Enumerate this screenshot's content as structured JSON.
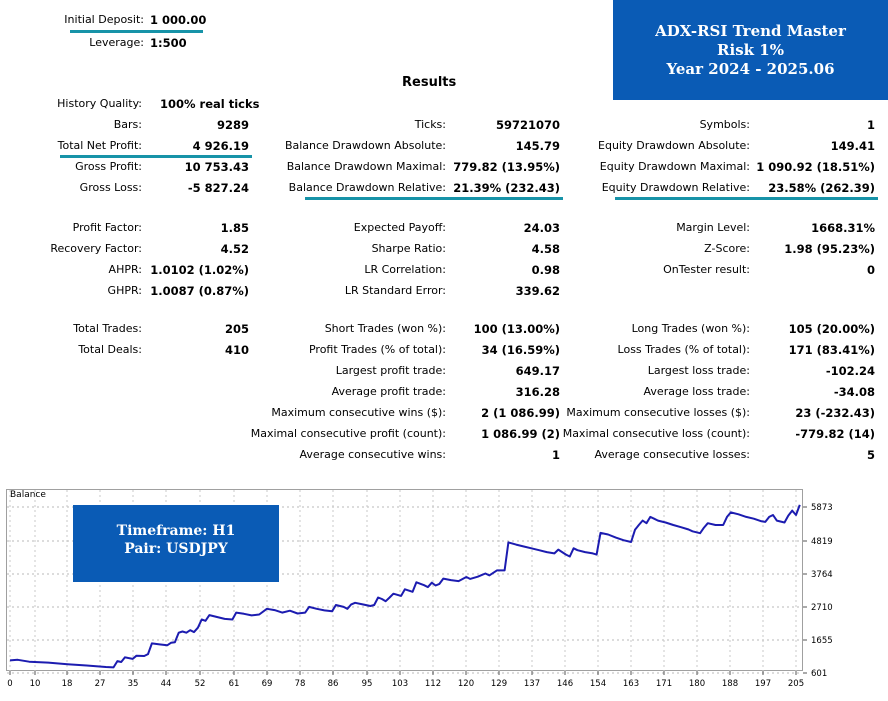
{
  "header": {
    "initial_deposit_label": "Initial Deposit:",
    "initial_deposit_value": "1 000.00",
    "leverage_label": "Leverage:",
    "leverage_value": "1:500"
  },
  "banner_top": {
    "line1": "ADX-RSI Trend Master",
    "line2": "Risk 1%",
    "line3": "Year 2024 - 2025.06",
    "color": "#0a5bb5"
  },
  "results_title": "Results",
  "col1": [
    {
      "label": "History Quality:",
      "value": "100% real ticks"
    },
    {
      "label": "Bars:",
      "value": "9289"
    },
    {
      "label": "Total Net Profit:",
      "value": "4 926.19"
    },
    {
      "label": "Gross Profit:",
      "value": "10 753.43"
    },
    {
      "label": "Gross Loss:",
      "value": "-5 827.24"
    },
    {
      "label": "Profit Factor:",
      "value": "1.85"
    },
    {
      "label": "Recovery Factor:",
      "value": "4.52"
    },
    {
      "label": "AHPR:",
      "value": "1.0102 (1.02%)"
    },
    {
      "label": "GHPR:",
      "value": "1.0087 (0.87%)"
    },
    {
      "label": "Total Trades:",
      "value": "205"
    },
    {
      "label": "Total Deals:",
      "value": "410"
    }
  ],
  "col2": [
    {
      "label": "Ticks:",
      "value": "59721070"
    },
    {
      "label": "Balance Drawdown Absolute:",
      "value": "145.79"
    },
    {
      "label": "Balance Drawdown Maximal:",
      "value": "779.82 (13.95%)"
    },
    {
      "label": "Balance Drawdown Relative:",
      "value": "21.39% (232.43)"
    },
    {
      "label": "Expected Payoff:",
      "value": "24.03"
    },
    {
      "label": "Sharpe Ratio:",
      "value": "4.58"
    },
    {
      "label": "LR Correlation:",
      "value": "0.98"
    },
    {
      "label": "LR Standard Error:",
      "value": "339.62"
    },
    {
      "label": "Short Trades (won %):",
      "value": "100 (13.00%)"
    },
    {
      "label": "Profit Trades (% of total):",
      "value": "34 (16.59%)"
    },
    {
      "label": "Largest profit trade:",
      "value": "649.17"
    },
    {
      "label": "Average profit trade:",
      "value": "316.28"
    },
    {
      "label": "Maximum consecutive wins ($):",
      "value": "2 (1 086.99)"
    },
    {
      "label": "Maximal consecutive profit (count):",
      "value": "1 086.99 (2)"
    },
    {
      "label": "Average consecutive wins:",
      "value": "1"
    }
  ],
  "col3": [
    {
      "label": "Symbols:",
      "value": "1"
    },
    {
      "label": "Equity Drawdown Absolute:",
      "value": "149.41"
    },
    {
      "label": "Equity Drawdown Maximal:",
      "value": "1 090.92 (18.51%)"
    },
    {
      "label": "Equity Drawdown Relative:",
      "value": "23.58% (262.39)"
    },
    {
      "label": "Margin Level:",
      "value": "1668.31%"
    },
    {
      "label": "Z-Score:",
      "value": "1.98 (95.23%)"
    },
    {
      "label": "OnTester result:",
      "value": "0"
    },
    {
      "label": "Long Trades (won %):",
      "value": "105 (20.00%)"
    },
    {
      "label": "Loss Trades (% of total):",
      "value": "171 (83.41%)"
    },
    {
      "label": "Largest loss trade:",
      "value": "-102.24"
    },
    {
      "label": "Average loss trade:",
      "value": "-34.08"
    },
    {
      "label": "Maximum consecutive losses ($):",
      "value": "23 (-232.43)"
    },
    {
      "label": "Maximal consecutive loss (count):",
      "value": "-779.82 (14)"
    },
    {
      "label": "Average consecutive losses:",
      "value": "5"
    }
  ],
  "banner_chart": {
    "line1": "Timeframe: H1",
    "line2": "Pair: USDJPY"
  },
  "chart_data": {
    "type": "line",
    "title": "Balance",
    "x_ticks": [
      "0",
      "10",
      "18",
      "27",
      "35",
      "44",
      "52",
      "61",
      "69",
      "78",
      "86",
      "95",
      "103",
      "112",
      "120",
      "129",
      "137",
      "146",
      "154",
      "163",
      "171",
      "180",
      "188",
      "197",
      "205"
    ],
    "y_ticks": [
      "5873",
      "4819",
      "3764",
      "2710",
      "1655",
      "601"
    ],
    "ylim": [
      601,
      5873
    ],
    "xlim": [
      0,
      205
    ],
    "line_color": "#1c1cb0",
    "series": [
      {
        "name": "Balance",
        "points": [
          [
            0,
            1000
          ],
          [
            2,
            1020
          ],
          [
            5,
            960
          ],
          [
            10,
            930
          ],
          [
            15,
            880
          ],
          [
            20,
            840
          ],
          [
            25,
            790
          ],
          [
            27,
            780
          ],
          [
            28,
            980
          ],
          [
            29,
            950
          ],
          [
            30,
            1100
          ],
          [
            32,
            1050
          ],
          [
            33,
            1150
          ],
          [
            35,
            1140
          ],
          [
            36,
            1200
          ],
          [
            37,
            1540
          ],
          [
            39,
            1510
          ],
          [
            41,
            1480
          ],
          [
            42,
            1560
          ],
          [
            43,
            1580
          ],
          [
            44,
            1880
          ],
          [
            45,
            1920
          ],
          [
            46,
            1880
          ],
          [
            47,
            1960
          ],
          [
            48,
            1900
          ],
          [
            49,
            2040
          ],
          [
            50,
            2300
          ],
          [
            51,
            2260
          ],
          [
            52,
            2440
          ],
          [
            54,
            2380
          ],
          [
            56,
            2320
          ],
          [
            58,
            2300
          ],
          [
            59,
            2520
          ],
          [
            61,
            2480
          ],
          [
            63,
            2430
          ],
          [
            65,
            2460
          ],
          [
            67,
            2640
          ],
          [
            69,
            2600
          ],
          [
            71,
            2520
          ],
          [
            73,
            2580
          ],
          [
            75,
            2490
          ],
          [
            77,
            2520
          ],
          [
            78,
            2700
          ],
          [
            80,
            2640
          ],
          [
            82,
            2590
          ],
          [
            84,
            2560
          ],
          [
            85,
            2760
          ],
          [
            87,
            2700
          ],
          [
            88,
            2640
          ],
          [
            89,
            2780
          ],
          [
            90,
            2830
          ],
          [
            92,
            2780
          ],
          [
            94,
            2730
          ],
          [
            95,
            2760
          ],
          [
            96,
            3000
          ],
          [
            97,
            2950
          ],
          [
            98,
            2880
          ],
          [
            99,
            3000
          ],
          [
            100,
            3120
          ],
          [
            102,
            3050
          ],
          [
            103,
            3260
          ],
          [
            105,
            3180
          ],
          [
            106,
            3480
          ],
          [
            108,
            3390
          ],
          [
            109,
            3330
          ],
          [
            110,
            3470
          ],
          [
            111,
            3380
          ],
          [
            112,
            3430
          ],
          [
            113,
            3600
          ],
          [
            115,
            3550
          ],
          [
            117,
            3520
          ],
          [
            119,
            3650
          ],
          [
            120,
            3590
          ],
          [
            122,
            3660
          ],
          [
            123,
            3710
          ],
          [
            124,
            3760
          ],
          [
            125,
            3700
          ],
          [
            127,
            3860
          ],
          [
            129,
            3860
          ],
          [
            130,
            4750
          ],
          [
            132,
            4680
          ],
          [
            134,
            4620
          ],
          [
            136,
            4560
          ],
          [
            138,
            4500
          ],
          [
            140,
            4440
          ],
          [
            142,
            4400
          ],
          [
            143,
            4520
          ],
          [
            145,
            4360
          ],
          [
            146,
            4300
          ],
          [
            147,
            4560
          ],
          [
            148,
            4500
          ],
          [
            150,
            4440
          ],
          [
            152,
            4400
          ],
          [
            153,
            4360
          ],
          [
            154,
            5050
          ],
          [
            156,
            5000
          ],
          [
            158,
            4900
          ],
          [
            160,
            4820
          ],
          [
            162,
            4760
          ],
          [
            163,
            5150
          ],
          [
            164,
            5300
          ],
          [
            165,
            5440
          ],
          [
            166,
            5360
          ],
          [
            167,
            5560
          ],
          [
            168,
            5500
          ],
          [
            169,
            5440
          ],
          [
            171,
            5380
          ],
          [
            173,
            5300
          ],
          [
            175,
            5230
          ],
          [
            177,
            5160
          ],
          [
            178,
            5100
          ],
          [
            180,
            5040
          ],
          [
            181,
            5220
          ],
          [
            182,
            5360
          ],
          [
            184,
            5300
          ],
          [
            186,
            5300
          ],
          [
            187,
            5560
          ],
          [
            188,
            5700
          ],
          [
            190,
            5640
          ],
          [
            192,
            5560
          ],
          [
            194,
            5500
          ],
          [
            196,
            5420
          ],
          [
            197,
            5400
          ],
          [
            198,
            5560
          ],
          [
            199,
            5620
          ],
          [
            200,
            5440
          ],
          [
            202,
            5380
          ],
          [
            203,
            5600
          ],
          [
            204,
            5760
          ],
          [
            205,
            5620
          ],
          [
            206,
            5940
          ]
        ]
      }
    ]
  }
}
